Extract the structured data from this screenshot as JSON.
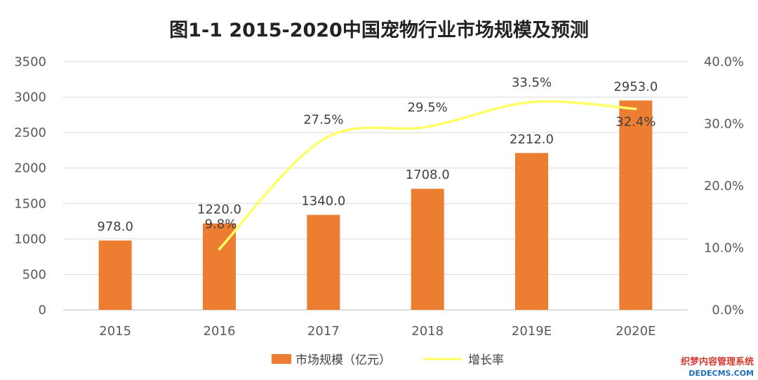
{
  "chart_data": {
    "type": "bar+line",
    "title": "图1-1 2015-2020中国宠物行业市场规模及预测",
    "categories": [
      "2015",
      "2016",
      "2017",
      "2018",
      "2019E",
      "2020E"
    ],
    "series": [
      {
        "name": "市场规模（亿元）",
        "type": "bar",
        "axis": "left",
        "values": [
          978.0,
          1220.0,
          1340.0,
          1708.0,
          2212.0,
          2953.0
        ],
        "labels": [
          "978.0",
          "1220.0",
          "1340.0",
          "1708.0",
          "2212.0",
          "2953.0"
        ],
        "color": "#ED7D31"
      },
      {
        "name": "增长率",
        "type": "line",
        "axis": "right",
        "values": [
          null,
          9.8,
          27.5,
          29.5,
          33.5,
          32.4
        ],
        "labels": [
          "",
          "9.8%",
          "27.5%",
          "29.5%",
          "33.5%",
          "32.4%"
        ],
        "color": "#FFFF66"
      }
    ],
    "y_left": {
      "ylim": [
        0,
        3500
      ],
      "ticks": [
        "0",
        "500",
        "1000",
        "1500",
        "2000",
        "2500",
        "3000",
        "3500"
      ]
    },
    "y_right": {
      "ylim": [
        0,
        40
      ],
      "ticks": [
        "0.0%",
        "10.0%",
        "20.0%",
        "30.0%",
        "40.0%"
      ]
    },
    "grid": true,
    "legend_position": "bottom-center"
  },
  "watermark": {
    "line1": "织梦内容管理系统",
    "line2": "DEDECMS.COM",
    "color_top": "#d43a2f",
    "color_bottom": "#1f6fb8"
  }
}
